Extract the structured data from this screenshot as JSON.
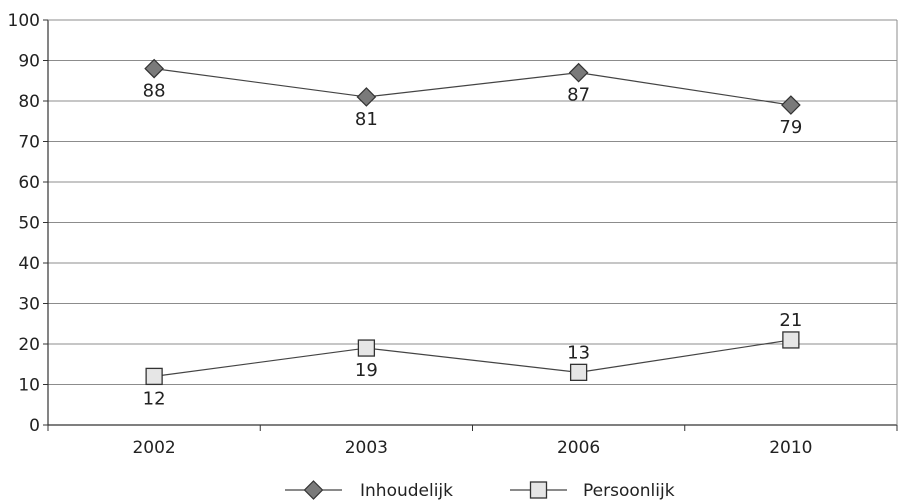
{
  "chart_data": {
    "type": "line",
    "categories": [
      "2002",
      "2003",
      "2006",
      "2010"
    ],
    "series": [
      {
        "name": "Inhoudelijk",
        "values": [
          88,
          81,
          87,
          79
        ],
        "marker": "diamond",
        "color": "#7a7a7a"
      },
      {
        "name": "Persoonlijk",
        "values": [
          12,
          19,
          13,
          21
        ],
        "marker": "square",
        "color": "#e6e6e6"
      }
    ],
    "yticks": [
      "0",
      "10",
      "20",
      "30",
      "40",
      "50",
      "60",
      "70",
      "80",
      "90",
      "100"
    ],
    "ylim": [
      0,
      100
    ],
    "grid": true,
    "legend_position": "bottom",
    "title": "",
    "xlabel": "",
    "ylabel": ""
  }
}
